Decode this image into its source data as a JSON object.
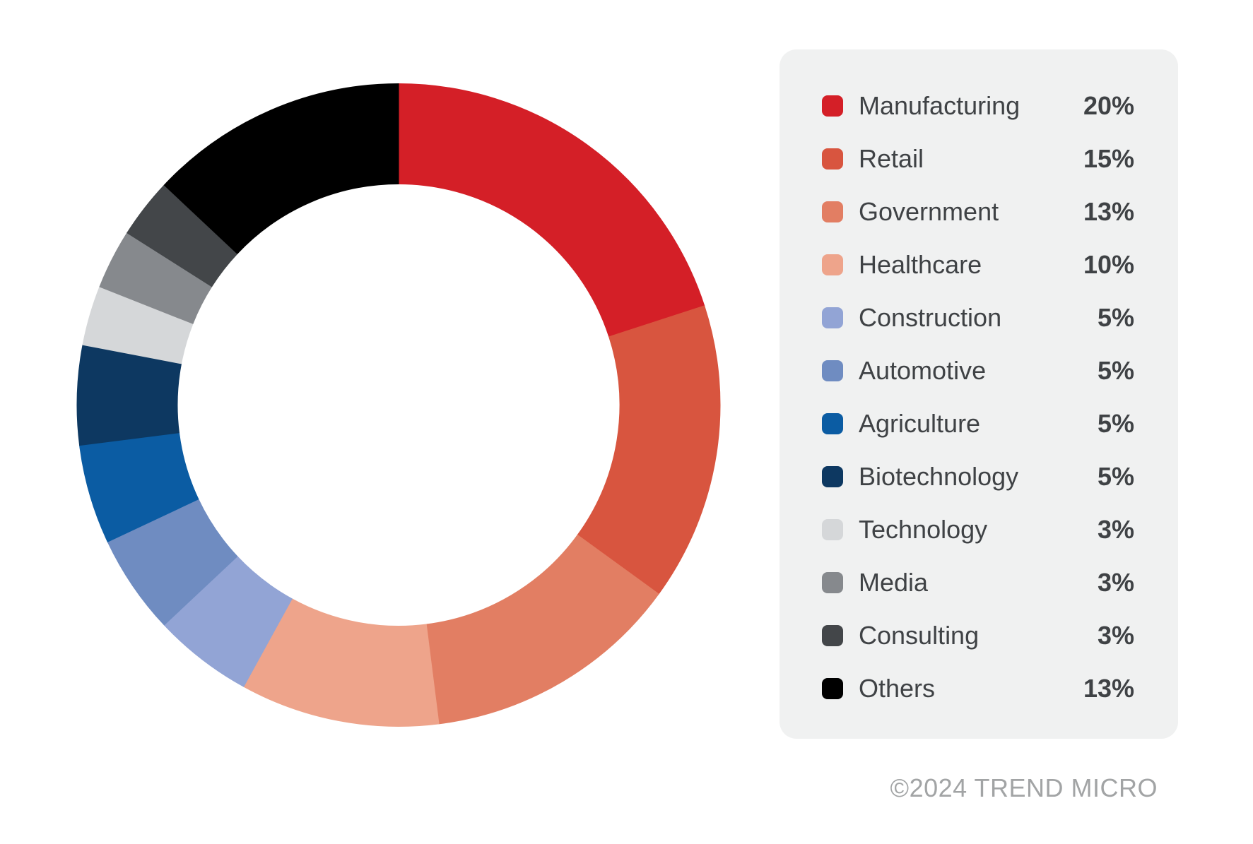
{
  "chart_data": {
    "type": "pie",
    "subtype": "donut",
    "title": "",
    "start_angle": "12 o'clock, clockwise",
    "categories": [
      "Manufacturing",
      "Retail",
      "Government",
      "Healthcare",
      "Construction",
      "Automotive",
      "Agriculture",
      "Biotechnology",
      "Technology",
      "Media",
      "Consulting",
      "Others"
    ],
    "values": [
      20,
      15,
      13,
      10,
      5,
      5,
      5,
      5,
      3,
      3,
      3,
      13
    ],
    "unit": "%",
    "colors": [
      "#d41f27",
      "#d8553f",
      "#e27e63",
      "#eea48b",
      "#92a4d5",
      "#6f8cc1",
      "#0b5ca3",
      "#0d3861",
      "#d5d7d9",
      "#86898d",
      "#434649",
      "#000000"
    ],
    "legend_position": "right"
  },
  "legend": {
    "items": [
      {
        "label": "Manufacturing",
        "value": "20%",
        "color": "#d41f27"
      },
      {
        "label": "Retail",
        "value": "15%",
        "color": "#d8553f"
      },
      {
        "label": "Government",
        "value": "13%",
        "color": "#e27e63"
      },
      {
        "label": "Healthcare",
        "value": "10%",
        "color": "#eea48b"
      },
      {
        "label": "Construction",
        "value": "5%",
        "color": "#92a4d5"
      },
      {
        "label": "Automotive",
        "value": "5%",
        "color": "#6f8cc1"
      },
      {
        "label": "Agriculture",
        "value": "5%",
        "color": "#0b5ca3"
      },
      {
        "label": "Biotechnology",
        "value": "5%",
        "color": "#0d3861"
      },
      {
        "label": "Technology",
        "value": "3%",
        "color": "#d5d7d9"
      },
      {
        "label": "Media",
        "value": "3%",
        "color": "#86898d"
      },
      {
        "label": "Consulting",
        "value": "3%",
        "color": "#434649"
      },
      {
        "label": "Others",
        "value": "13%",
        "color": "#000000"
      }
    ]
  },
  "footer": {
    "copyright": "©2024 TREND MICRO"
  },
  "colors": {
    "panel_bg": "#f0f1f1",
    "label_text": "#3f4245",
    "copyright_text": "#a2a4a5",
    "canvas_bg": "#ffffff"
  }
}
